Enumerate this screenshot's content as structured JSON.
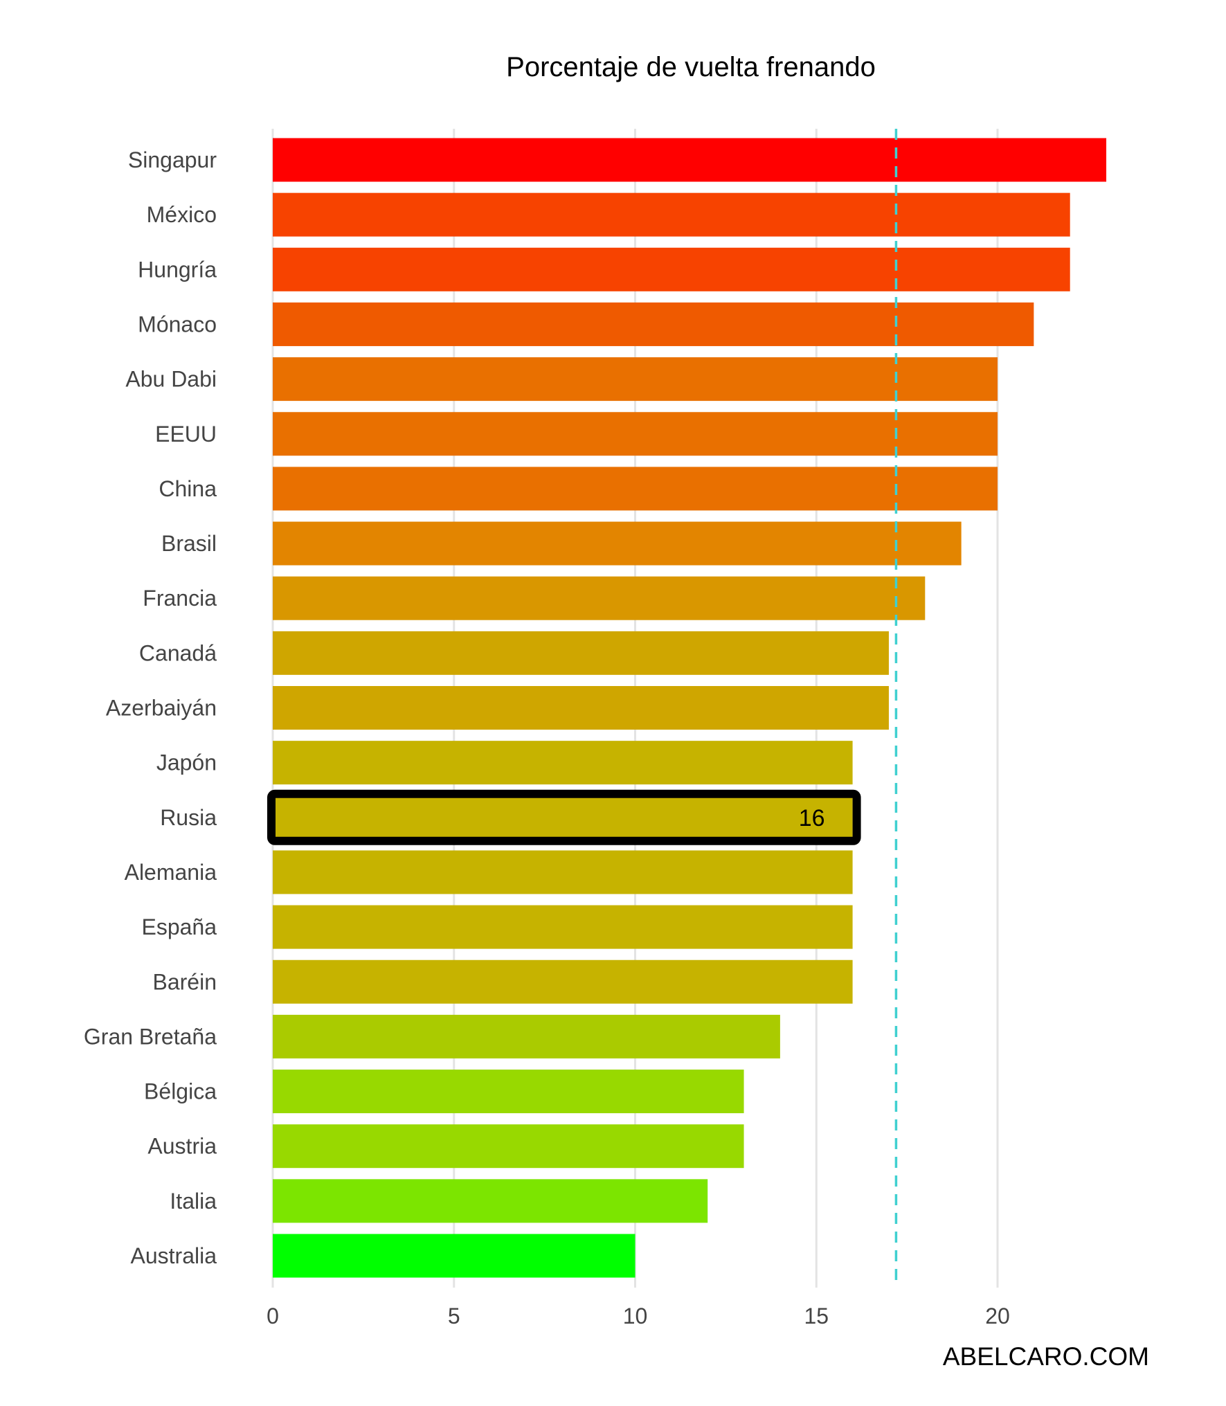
{
  "chart_data": {
    "type": "bar",
    "orientation": "horizontal",
    "title": "Porcentaje de vuelta frenando",
    "xlabel": "",
    "ylabel": "",
    "xlim": [
      0,
      23
    ],
    "x_ticks": [
      0,
      5,
      10,
      15,
      20
    ],
    "grid": true,
    "legend": "none",
    "categories": [
      "Singapur",
      "México",
      "Hungría",
      "Mónaco",
      "Abu Dabi",
      "EEUU",
      "China",
      "Brasil",
      "Francia",
      "Canadá",
      "Azerbaiyán",
      "Japón",
      "Rusia",
      "Alemania",
      "España",
      "Baréin",
      "Gran Bretaña",
      "Bélgica",
      "Austria",
      "Italia",
      "Australia"
    ],
    "values": [
      23,
      22,
      22,
      21,
      20,
      20,
      20,
      19,
      18,
      17,
      17,
      16,
      16,
      16,
      16,
      16,
      14,
      13,
      13,
      12,
      10
    ],
    "colors": [
      "#ff0000",
      "#f74300",
      "#f74300",
      "#ef5a00",
      "#e97000",
      "#e97000",
      "#e97000",
      "#e38500",
      "#d99700",
      "#cfa600",
      "#cfa600",
      "#c6b300",
      "#c6b300",
      "#c6b300",
      "#c6b300",
      "#c6b300",
      "#aacb00",
      "#98d900",
      "#98d900",
      "#7ce500",
      "#00ff00"
    ],
    "reference_line": {
      "value": 17.2,
      "style": "dashed",
      "color": "#40d0d0"
    },
    "highlight": {
      "category": "Rusia",
      "label": "16"
    },
    "watermark": "ABELCARO.COM"
  }
}
